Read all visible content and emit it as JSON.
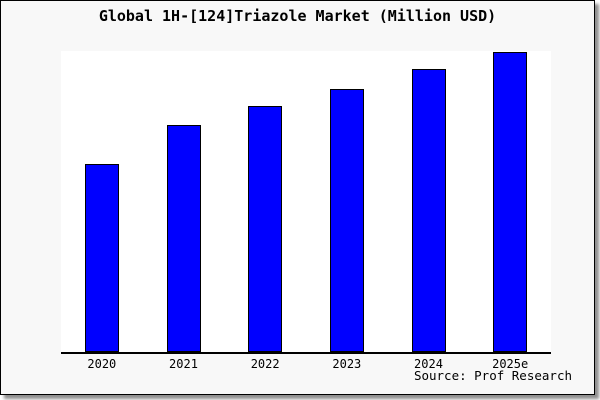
{
  "chart_data": {
    "type": "bar",
    "title": "Global 1H-[124]Triazole Market (Million USD)",
    "categories": [
      "2020",
      "2021",
      "2022",
      "2023",
      "2024",
      "2025e"
    ],
    "values": [
      188,
      227,
      246,
      263,
      283,
      300
    ],
    "values_note": "relative bar heights in px; chart shows no numeric value labels or y-axis ticks",
    "xlabel": "",
    "ylabel": "",
    "ylim": [
      0,
      301
    ],
    "grid": false,
    "legend": "none",
    "y_axis_ticks": "none",
    "source": "Source: Prof Research",
    "colors": {
      "bar_fill": "#0000ff",
      "bar_border": "#000000",
      "plot_bg": "#ffffff",
      "page_bg": "#f8f8f8",
      "axis": "#000000",
      "text": "#000000"
    }
  }
}
